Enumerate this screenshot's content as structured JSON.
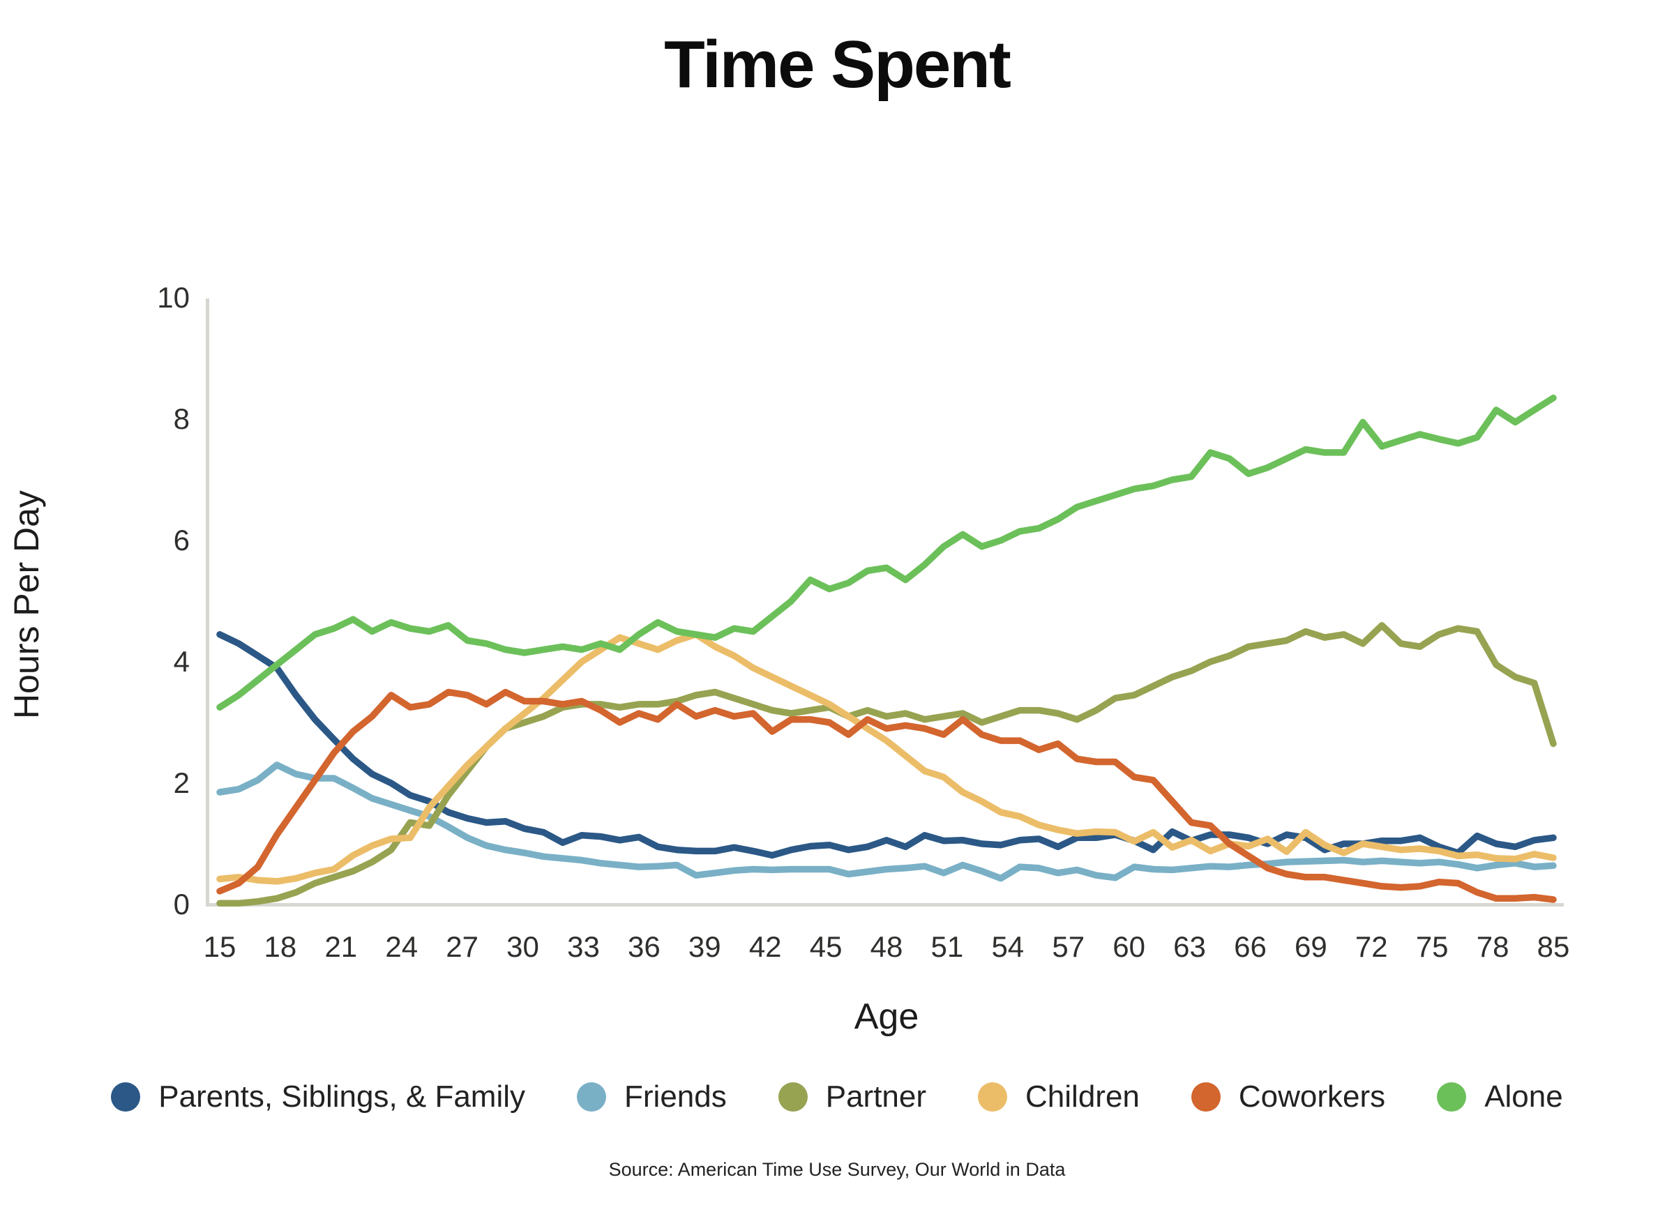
{
  "title": "Time Spent",
  "source": "Source: American Time Use Survey, Our World in Data",
  "colors": {
    "axis_line": "#d7d7d1",
    "tick_text": "#2e2e2c",
    "title_text": "#0c0c0c"
  },
  "chart_data": {
    "type": "line",
    "title": "Time Spent",
    "xlabel": "Age",
    "ylabel": "Hours Per Day",
    "ylim": [
      0,
      10
    ],
    "y_ticks": [
      0,
      2,
      4,
      6,
      8,
      10
    ],
    "x_tick_labels": [
      "15",
      "18",
      "21",
      "24",
      "27",
      "30",
      "33",
      "36",
      "39",
      "42",
      "45",
      "48",
      "51",
      "54",
      "57",
      "60",
      "63",
      "66",
      "69",
      "72",
      "75",
      "78",
      "85"
    ],
    "age_start": 15,
    "age_end": 85,
    "age_step": 1,
    "grid": false,
    "legend_position": "bottom",
    "series": [
      {
        "name": "Parents, Siblings, & Family",
        "color": "#2b5886",
        "values": [
          4.45,
          4.3,
          4.1,
          3.9,
          3.45,
          3.05,
          2.72,
          2.4,
          2.15,
          2.0,
          1.8,
          1.7,
          1.52,
          1.42,
          1.35,
          1.37,
          1.25,
          1.19,
          1.02,
          1.14,
          1.12,
          1.06,
          1.11,
          0.95,
          0.9,
          0.88,
          0.88,
          0.94,
          0.88,
          0.81,
          0.9,
          0.96,
          0.98,
          0.9,
          0.95,
          1.06,
          0.95,
          1.14,
          1.05,
          1.06,
          1.0,
          0.98,
          1.06,
          1.08,
          0.95,
          1.1,
          1.1,
          1.15,
          1.05,
          0.9,
          1.2,
          1.05,
          1.15,
          1.15,
          1.1,
          1.0,
          1.15,
          1.1,
          0.9,
          1.0,
          1.0,
          1.05,
          1.05,
          1.1,
          0.95,
          0.85,
          1.13,
          1.0,
          0.95,
          1.06,
          1.1
        ]
      },
      {
        "name": "Friends",
        "color": "#79b0c6",
        "values": [
          1.85,
          1.9,
          2.05,
          2.3,
          2.15,
          2.08,
          2.08,
          1.92,
          1.75,
          1.65,
          1.55,
          1.45,
          1.28,
          1.1,
          0.97,
          0.9,
          0.85,
          0.79,
          0.76,
          0.73,
          0.68,
          0.65,
          0.62,
          0.63,
          0.65,
          0.48,
          0.52,
          0.56,
          0.58,
          0.57,
          0.58,
          0.58,
          0.58,
          0.5,
          0.54,
          0.58,
          0.6,
          0.63,
          0.52,
          0.65,
          0.55,
          0.43,
          0.62,
          0.6,
          0.52,
          0.57,
          0.48,
          0.44,
          0.62,
          0.58,
          0.57,
          0.6,
          0.63,
          0.62,
          0.65,
          0.67,
          0.7,
          0.71,
          0.72,
          0.73,
          0.7,
          0.72,
          0.7,
          0.68,
          0.7,
          0.66,
          0.6,
          0.65,
          0.68,
          0.62,
          0.64
        ]
      },
      {
        "name": "Partner",
        "color": "#97a351",
        "values": [
          0.02,
          0.02,
          0.05,
          0.1,
          0.2,
          0.35,
          0.45,
          0.55,
          0.7,
          0.9,
          1.35,
          1.3,
          1.8,
          2.2,
          2.6,
          2.9,
          3.0,
          3.1,
          3.25,
          3.3,
          3.3,
          3.25,
          3.3,
          3.3,
          3.35,
          3.45,
          3.5,
          3.4,
          3.3,
          3.2,
          3.15,
          3.2,
          3.25,
          3.1,
          3.2,
          3.1,
          3.15,
          3.05,
          3.1,
          3.15,
          3.0,
          3.1,
          3.2,
          3.2,
          3.15,
          3.05,
          3.2,
          3.4,
          3.45,
          3.6,
          3.75,
          3.85,
          4.0,
          4.1,
          4.25,
          4.3,
          4.35,
          4.5,
          4.4,
          4.45,
          4.3,
          4.6,
          4.3,
          4.25,
          4.45,
          4.55,
          4.5,
          3.95,
          3.75,
          3.65,
          2.65
        ]
      },
      {
        "name": "Children",
        "color": "#ecbd68",
        "values": [
          0.42,
          0.45,
          0.4,
          0.38,
          0.43,
          0.52,
          0.58,
          0.81,
          0.97,
          1.08,
          1.1,
          1.6,
          1.95,
          2.3,
          2.6,
          2.9,
          3.15,
          3.4,
          3.7,
          4.0,
          4.2,
          4.4,
          4.3,
          4.2,
          4.35,
          4.45,
          4.25,
          4.1,
          3.9,
          3.75,
          3.6,
          3.45,
          3.3,
          3.1,
          2.9,
          2.7,
          2.45,
          2.2,
          2.1,
          1.85,
          1.7,
          1.52,
          1.45,
          1.31,
          1.23,
          1.17,
          1.2,
          1.19,
          1.04,
          1.19,
          0.94,
          1.06,
          0.88,
          1.0,
          0.96,
          1.08,
          0.87,
          1.19,
          0.98,
          0.85,
          1.0,
          0.95,
          0.9,
          0.92,
          0.88,
          0.8,
          0.82,
          0.76,
          0.75,
          0.83,
          0.77
        ]
      },
      {
        "name": "Coworkers",
        "color": "#d3652e",
        "values": [
          0.22,
          0.35,
          0.62,
          1.15,
          1.6,
          2.05,
          2.5,
          2.85,
          3.1,
          3.45,
          3.25,
          3.3,
          3.5,
          3.45,
          3.3,
          3.5,
          3.35,
          3.35,
          3.3,
          3.35,
          3.2,
          3.0,
          3.15,
          3.05,
          3.3,
          3.1,
          3.2,
          3.1,
          3.15,
          2.85,
          3.05,
          3.05,
          3.0,
          2.8,
          3.05,
          2.9,
          2.95,
          2.9,
          2.8,
          3.05,
          2.8,
          2.7,
          2.7,
          2.55,
          2.65,
          2.4,
          2.35,
          2.35,
          2.1,
          2.05,
          1.7,
          1.35,
          1.3,
          1.0,
          0.8,
          0.6,
          0.5,
          0.45,
          0.45,
          0.4,
          0.35,
          0.3,
          0.28,
          0.3,
          0.37,
          0.35,
          0.2,
          0.1,
          0.1,
          0.12,
          0.08
        ]
      },
      {
        "name": "Alone",
        "color": "#6cc05a",
        "values": [
          3.25,
          3.45,
          3.7,
          3.95,
          4.2,
          4.45,
          4.55,
          4.7,
          4.5,
          4.65,
          4.55,
          4.5,
          4.6,
          4.35,
          4.3,
          4.2,
          4.15,
          4.2,
          4.25,
          4.2,
          4.3,
          4.2,
          4.45,
          4.65,
          4.5,
          4.45,
          4.4,
          4.55,
          4.5,
          4.75,
          5.0,
          5.35,
          5.2,
          5.3,
          5.5,
          5.55,
          5.35,
          5.6,
          5.9,
          6.1,
          5.9,
          6.0,
          6.15,
          6.2,
          6.35,
          6.55,
          6.65,
          6.75,
          6.85,
          6.9,
          7.0,
          7.05,
          7.45,
          7.35,
          7.1,
          7.2,
          7.35,
          7.5,
          7.45,
          7.45,
          7.95,
          7.55,
          7.65,
          7.75,
          7.67,
          7.6,
          7.7,
          8.15,
          7.95,
          8.15,
          8.35
        ]
      }
    ]
  }
}
